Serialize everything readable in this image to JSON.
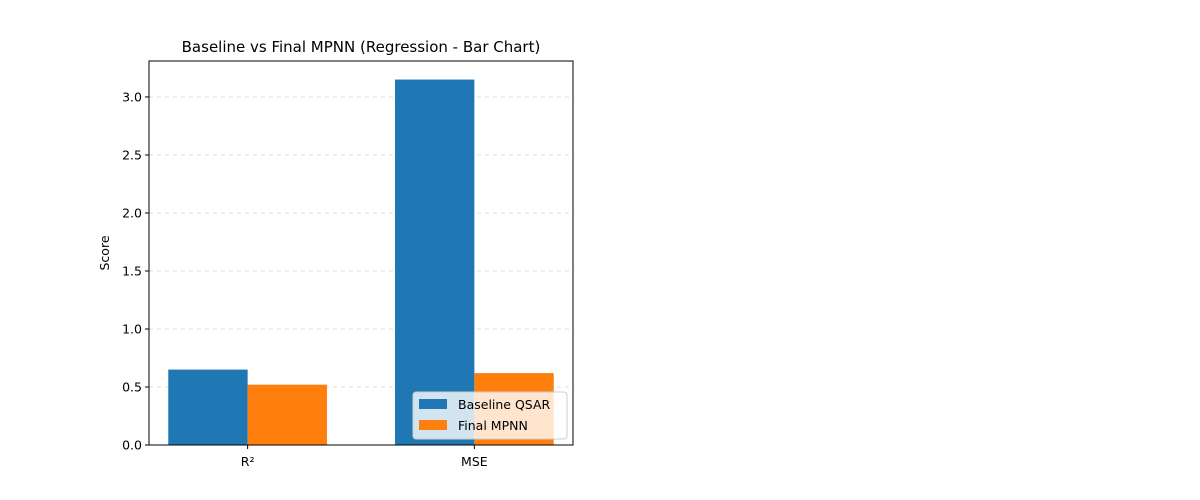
{
  "chart_data": {
    "type": "bar",
    "title": "Baseline vs Final MPNN (Regression - Bar Chart)",
    "xlabel": "",
    "ylabel": "Score",
    "categories": [
      "R²",
      "MSE"
    ],
    "series": [
      {
        "name": "Baseline QSAR",
        "color": "#1f77b4",
        "values": [
          0.65,
          3.15
        ]
      },
      {
        "name": "Final MPNN",
        "color": "#ff7f0e",
        "values": [
          0.52,
          0.62
        ]
      }
    ],
    "ylim": [
      0,
      3.31
    ],
    "yticks": [
      0.0,
      0.5,
      1.0,
      1.5,
      2.0,
      2.5,
      3.0
    ],
    "ytick_labels": [
      "0.0",
      "0.5",
      "1.0",
      "1.5",
      "2.0",
      "2.5",
      "3.0"
    ],
    "grid": "y-dashed",
    "legend_position": "lower-right"
  }
}
